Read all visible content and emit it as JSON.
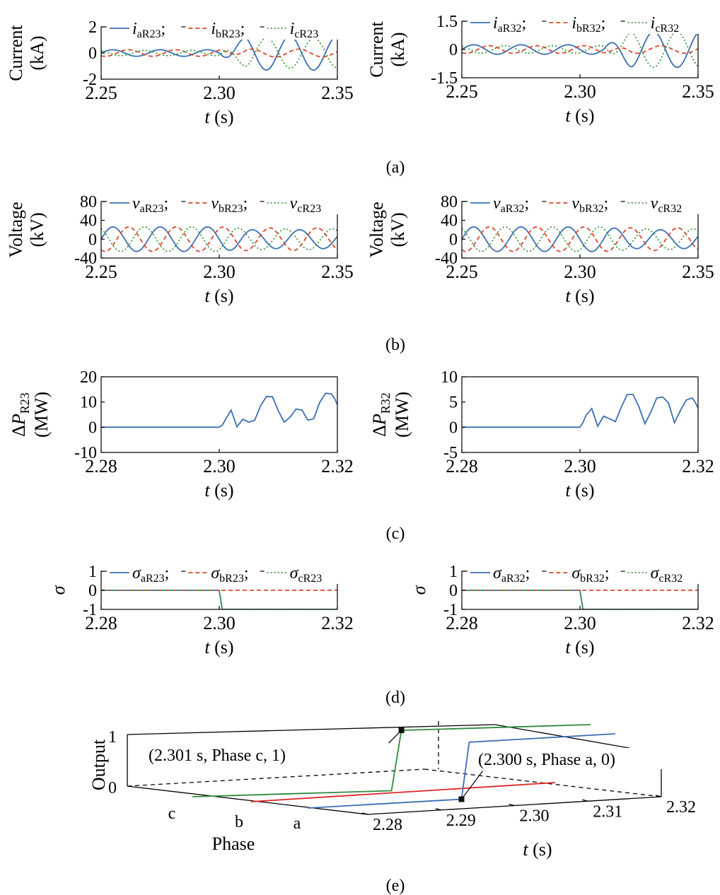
{
  "panel_labels": [
    "(a)",
    "(b)",
    "(c)",
    "(d)",
    "(e)"
  ],
  "chart_data": [
    {
      "id": "a-left",
      "type": "line",
      "ylabel": [
        "Current",
        "(kA)"
      ],
      "xlabel": {
        "italic": "t",
        "rest": " (s)"
      },
      "xlim": [
        2.25,
        2.35
      ],
      "ylim": [
        -2,
        2
      ],
      "xticks": [
        "2.25",
        "2.30",
        "2.35"
      ],
      "yticks": [
        "2",
        "0",
        "-2"
      ],
      "legend": [
        {
          "var": "i",
          "sub": "aR23",
          "sep": ";"
        },
        {
          "var": "i",
          "sub": "bR23",
          "sep": ";"
        },
        {
          "var": "i",
          "sub": "cR23",
          "sep": ""
        }
      ],
      "series": [
        {
          "color": "#3b6fb6",
          "dash": "",
          "pre_amp": 0.25,
          "post_amp": 1.3,
          "phase": 0,
          "post_phase": 1.6
        },
        {
          "color": "#d9472b",
          "dash": "6,4",
          "pre_amp": 0.25,
          "post_amp": 0.3,
          "phase": -2.094,
          "post_phase": 0.4
        },
        {
          "color": "#3b9a3b",
          "dash": "2,3",
          "pre_amp": 0.2,
          "post_amp": 1.15,
          "phase": 2.094,
          "post_phase": -1.6
        }
      ],
      "freq_hz": 50,
      "fault_t": 2.3
    },
    {
      "id": "a-right",
      "type": "line",
      "ylabel": [
        "Current",
        "(kA)"
      ],
      "xlabel": {
        "italic": "t",
        "rest": " (s)"
      },
      "xlim": [
        2.25,
        2.35
      ],
      "ylim": [
        -1.5,
        1.5
      ],
      "xticks": [
        "2.25",
        "2.30",
        "2.35"
      ],
      "yticks": [
        "1.5",
        "0",
        "-1.5"
      ],
      "legend": [
        {
          "var": "i",
          "sub": "aR32",
          "sep": ";"
        },
        {
          "var": "i",
          "sub": "bR32",
          "sep": ";"
        },
        {
          "var": "i",
          "sub": "cR32",
          "sep": ""
        }
      ],
      "series": [
        {
          "color": "#3b6fb6",
          "dash": "",
          "pre_amp": 0.25,
          "post_amp": 0.95,
          "phase": 0,
          "post_phase": 1.2
        },
        {
          "color": "#d9472b",
          "dash": "6,4",
          "pre_amp": 0.2,
          "post_amp": 0.2,
          "phase": -2.094,
          "post_phase": 0.2
        },
        {
          "color": "#3b9a3b",
          "dash": "2,3",
          "pre_amp": 0.2,
          "post_amp": 0.95,
          "phase": 2.094,
          "post_phase": -1.9
        }
      ],
      "freq_hz": 50,
      "fault_t": 2.31
    },
    {
      "id": "b-left",
      "type": "line",
      "ylabel": [
        "Voltage",
        "(kV)"
      ],
      "xlabel": {
        "italic": "t",
        "rest": " (s)"
      },
      "xlim": [
        2.25,
        2.35
      ],
      "ylim": [
        -40,
        80
      ],
      "xticks": [
        "2.25",
        "2.30",
        "2.35"
      ],
      "yticks": [
        "80",
        "40",
        "0",
        "-40"
      ],
      "legend": [
        {
          "var": "v",
          "sub": "aR23",
          "sep": ";"
        },
        {
          "var": "v",
          "sub": "bR23",
          "sep": ";"
        },
        {
          "var": "v",
          "sub": "cR23",
          "sep": ""
        }
      ],
      "series": [
        {
          "color": "#3b6fb6",
          "dash": "",
          "pre_amp": 26,
          "post_amp": 20,
          "phase": 0,
          "post_phase": 0.3
        },
        {
          "color": "#d9472b",
          "dash": "6,4",
          "pre_amp": 26,
          "post_amp": 24,
          "phase": -2.094,
          "post_phase": -2.0
        },
        {
          "color": "#3b9a3b",
          "dash": "2,3",
          "pre_amp": 26,
          "post_amp": 22,
          "phase": 2.094,
          "post_phase": 2.2
        }
      ],
      "freq_hz": 50,
      "fault_t": 2.3
    },
    {
      "id": "b-right",
      "type": "line",
      "ylabel": [
        "Voltage",
        "(kV)"
      ],
      "xlabel": {
        "italic": "t",
        "rest": " (s)"
      },
      "xlim": [
        2.25,
        2.35
      ],
      "ylim": [
        -40,
        80
      ],
      "xticks": [
        "2.25",
        "2.30",
        "2.35"
      ],
      "yticks": [
        "80",
        "40",
        "0",
        "-40"
      ],
      "legend": [
        {
          "var": "v",
          "sub": "aR32",
          "sep": ";"
        },
        {
          "var": "v",
          "sub": "bR32",
          "sep": ";"
        },
        {
          "var": "v",
          "sub": "cR32",
          "sep": ""
        }
      ],
      "series": [
        {
          "color": "#3b6fb6",
          "dash": "",
          "pre_amp": 26,
          "post_amp": 20,
          "phase": 0,
          "post_phase": 0.3
        },
        {
          "color": "#d9472b",
          "dash": "6,4",
          "pre_amp": 26,
          "post_amp": 24,
          "phase": -2.094,
          "post_phase": -2.0
        },
        {
          "color": "#3b9a3b",
          "dash": "2,3",
          "pre_amp": 26,
          "post_amp": 22,
          "phase": 2.094,
          "post_phase": 2.2
        }
      ],
      "freq_hz": 50,
      "fault_t": 2.31
    },
    {
      "id": "c-left",
      "type": "line",
      "ylabel_main": "ΔP",
      "ylabel_sub": "R23",
      "ylabel_unit": "(MW)",
      "xlabel": {
        "italic": "t",
        "rest": " (s)"
      },
      "xlim": [
        2.28,
        2.32
      ],
      "ylim": [
        -10,
        20
      ],
      "xticks": [
        "2.28",
        "2.30",
        "2.32"
      ],
      "yticks": [
        "20",
        "10",
        "0",
        "-10"
      ],
      "series": [
        {
          "color": "#3b6fb6",
          "x": [
            2.28,
            2.3,
            2.3005,
            2.301,
            2.302,
            2.303,
            2.304,
            2.305,
            2.306,
            2.307,
            2.308,
            2.309,
            2.31,
            2.311,
            2.312,
            2.313,
            2.314,
            2.315,
            2.316,
            2.317,
            2.318,
            2.319,
            2.3195,
            2.32
          ],
          "y": [
            0,
            0,
            0.8,
            2.8,
            6.8,
            0.2,
            3.2,
            2.0,
            2.8,
            8.5,
            12.2,
            12.1,
            6.5,
            2.0,
            4.0,
            7.2,
            6.8,
            2.8,
            3.4,
            9.8,
            13.5,
            13.2,
            11.5,
            9.0
          ]
        }
      ]
    },
    {
      "id": "c-right",
      "type": "line",
      "ylabel_main": "ΔP",
      "ylabel_sub": "R32",
      "ylabel_unit": "(MW)",
      "xlabel": {
        "italic": "t",
        "rest": " (s)"
      },
      "xlim": [
        2.28,
        2.32
      ],
      "ylim": [
        -5,
        10
      ],
      "xticks": [
        "2.28",
        "2.30",
        "2.32"
      ],
      "yticks": [
        "10",
        "5",
        "0",
        "-5"
      ],
      "series": [
        {
          "color": "#3b6fb6",
          "x": [
            2.28,
            2.3,
            2.3005,
            2.301,
            2.302,
            2.303,
            2.304,
            2.305,
            2.306,
            2.307,
            2.308,
            2.309,
            2.31,
            2.311,
            2.312,
            2.313,
            2.314,
            2.315,
            2.316,
            2.317,
            2.318,
            2.319,
            2.3195,
            2.32
          ],
          "y": [
            0,
            0,
            0.9,
            2.3,
            3.7,
            0.2,
            2.2,
            1.7,
            1.1,
            4.0,
            6.5,
            6.5,
            4.0,
            0.7,
            3.0,
            5.8,
            6.0,
            4.8,
            0.9,
            3.3,
            5.4,
            5.8,
            5.0,
            3.8
          ]
        }
      ]
    },
    {
      "id": "d-left",
      "type": "line",
      "ylabel_main": "σ",
      "xlabel": {
        "italic": "t",
        "rest": " (s)"
      },
      "xlim": [
        2.28,
        2.32
      ],
      "ylim": [
        -1,
        1
      ],
      "xticks": [
        "2.28",
        "2.30",
        "2.32"
      ],
      "yticks": [
        "1",
        "0",
        "-1"
      ],
      "legend": [
        {
          "var": "σ",
          "sub": "aR23",
          "sep": ";"
        },
        {
          "var": "σ",
          "sub": "bR23",
          "sep": ";"
        },
        {
          "var": "σ",
          "sub": "cR23",
          "sep": ""
        }
      ],
      "series": [
        {
          "color": "#3b6fb6",
          "dash": "",
          "x": [
            2.28,
            2.3,
            2.3005,
            2.32
          ],
          "y": [
            0,
            0,
            -1,
            -1
          ]
        },
        {
          "color": "#d9472b",
          "dash": "6,4",
          "x": [
            2.28,
            2.32
          ],
          "y": [
            0,
            0
          ]
        },
        {
          "color": "#3b9a3b",
          "dash": "2,3",
          "x": [
            2.28,
            2.3,
            2.3005,
            2.32
          ],
          "y": [
            0,
            0,
            -1,
            -1
          ]
        }
      ]
    },
    {
      "id": "d-right",
      "type": "line",
      "ylabel_main": "σ",
      "xlabel": {
        "italic": "t",
        "rest": " (s)"
      },
      "xlim": [
        2.28,
        2.32
      ],
      "ylim": [
        -1,
        1
      ],
      "xticks": [
        "2.28",
        "2.30",
        "2.32"
      ],
      "yticks": [
        "1",
        "0",
        "-1"
      ],
      "legend": [
        {
          "var": "σ",
          "sub": "aR32",
          "sep": ";"
        },
        {
          "var": "σ",
          "sub": "bR32",
          "sep": ";"
        },
        {
          "var": "σ",
          "sub": "cR32",
          "sep": ""
        }
      ],
      "series": [
        {
          "color": "#3b6fb6",
          "dash": "",
          "x": [
            2.28,
            2.3,
            2.3005,
            2.32
          ],
          "y": [
            0,
            0,
            -1,
            -1
          ]
        },
        {
          "color": "#d9472b",
          "dash": "6,4",
          "x": [
            2.28,
            2.32
          ],
          "y": [
            0,
            0
          ]
        },
        {
          "color": "#3b9a3b",
          "dash": "2,3",
          "x": [
            2.28,
            2.3,
            2.3005,
            2.32
          ],
          "y": [
            0,
            0,
            -1,
            -1
          ]
        }
      ]
    },
    {
      "id": "e",
      "type": "line-3d",
      "zlabel": "Output",
      "ylabel": "Phase",
      "xlabel": {
        "italic": "t",
        "rest": " (s)"
      },
      "xlim": [
        2.28,
        2.32
      ],
      "xticks": [
        "2.28",
        "2.29",
        "2.30",
        "2.31",
        "2.32"
      ],
      "phase_labels": [
        "c",
        "b",
        "a"
      ],
      "zticks": [
        "1",
        "0"
      ],
      "series": [
        {
          "phase": "c",
          "color": "#2e8b3e",
          "x": [
            2.28,
            2.3,
            2.301,
            2.32
          ],
          "y": [
            0,
            0,
            1,
            1
          ]
        },
        {
          "phase": "b",
          "color": "#e02424",
          "x": [
            2.28,
            2.32
          ],
          "y": [
            0,
            0
          ]
        },
        {
          "phase": "a",
          "color": "#3b6fb6",
          "x": [
            2.28,
            2.3,
            2.301,
            2.32
          ],
          "y": [
            0,
            0,
            1,
            1
          ]
        }
      ],
      "annotations": [
        {
          "text": "(2.301 s, Phase c, 1)",
          "x": 2.301,
          "phase": "c",
          "z": 1
        },
        {
          "text": "(2.300 s, Phase a, 0)",
          "x": 2.3,
          "phase": "a",
          "z": 0
        }
      ]
    }
  ]
}
